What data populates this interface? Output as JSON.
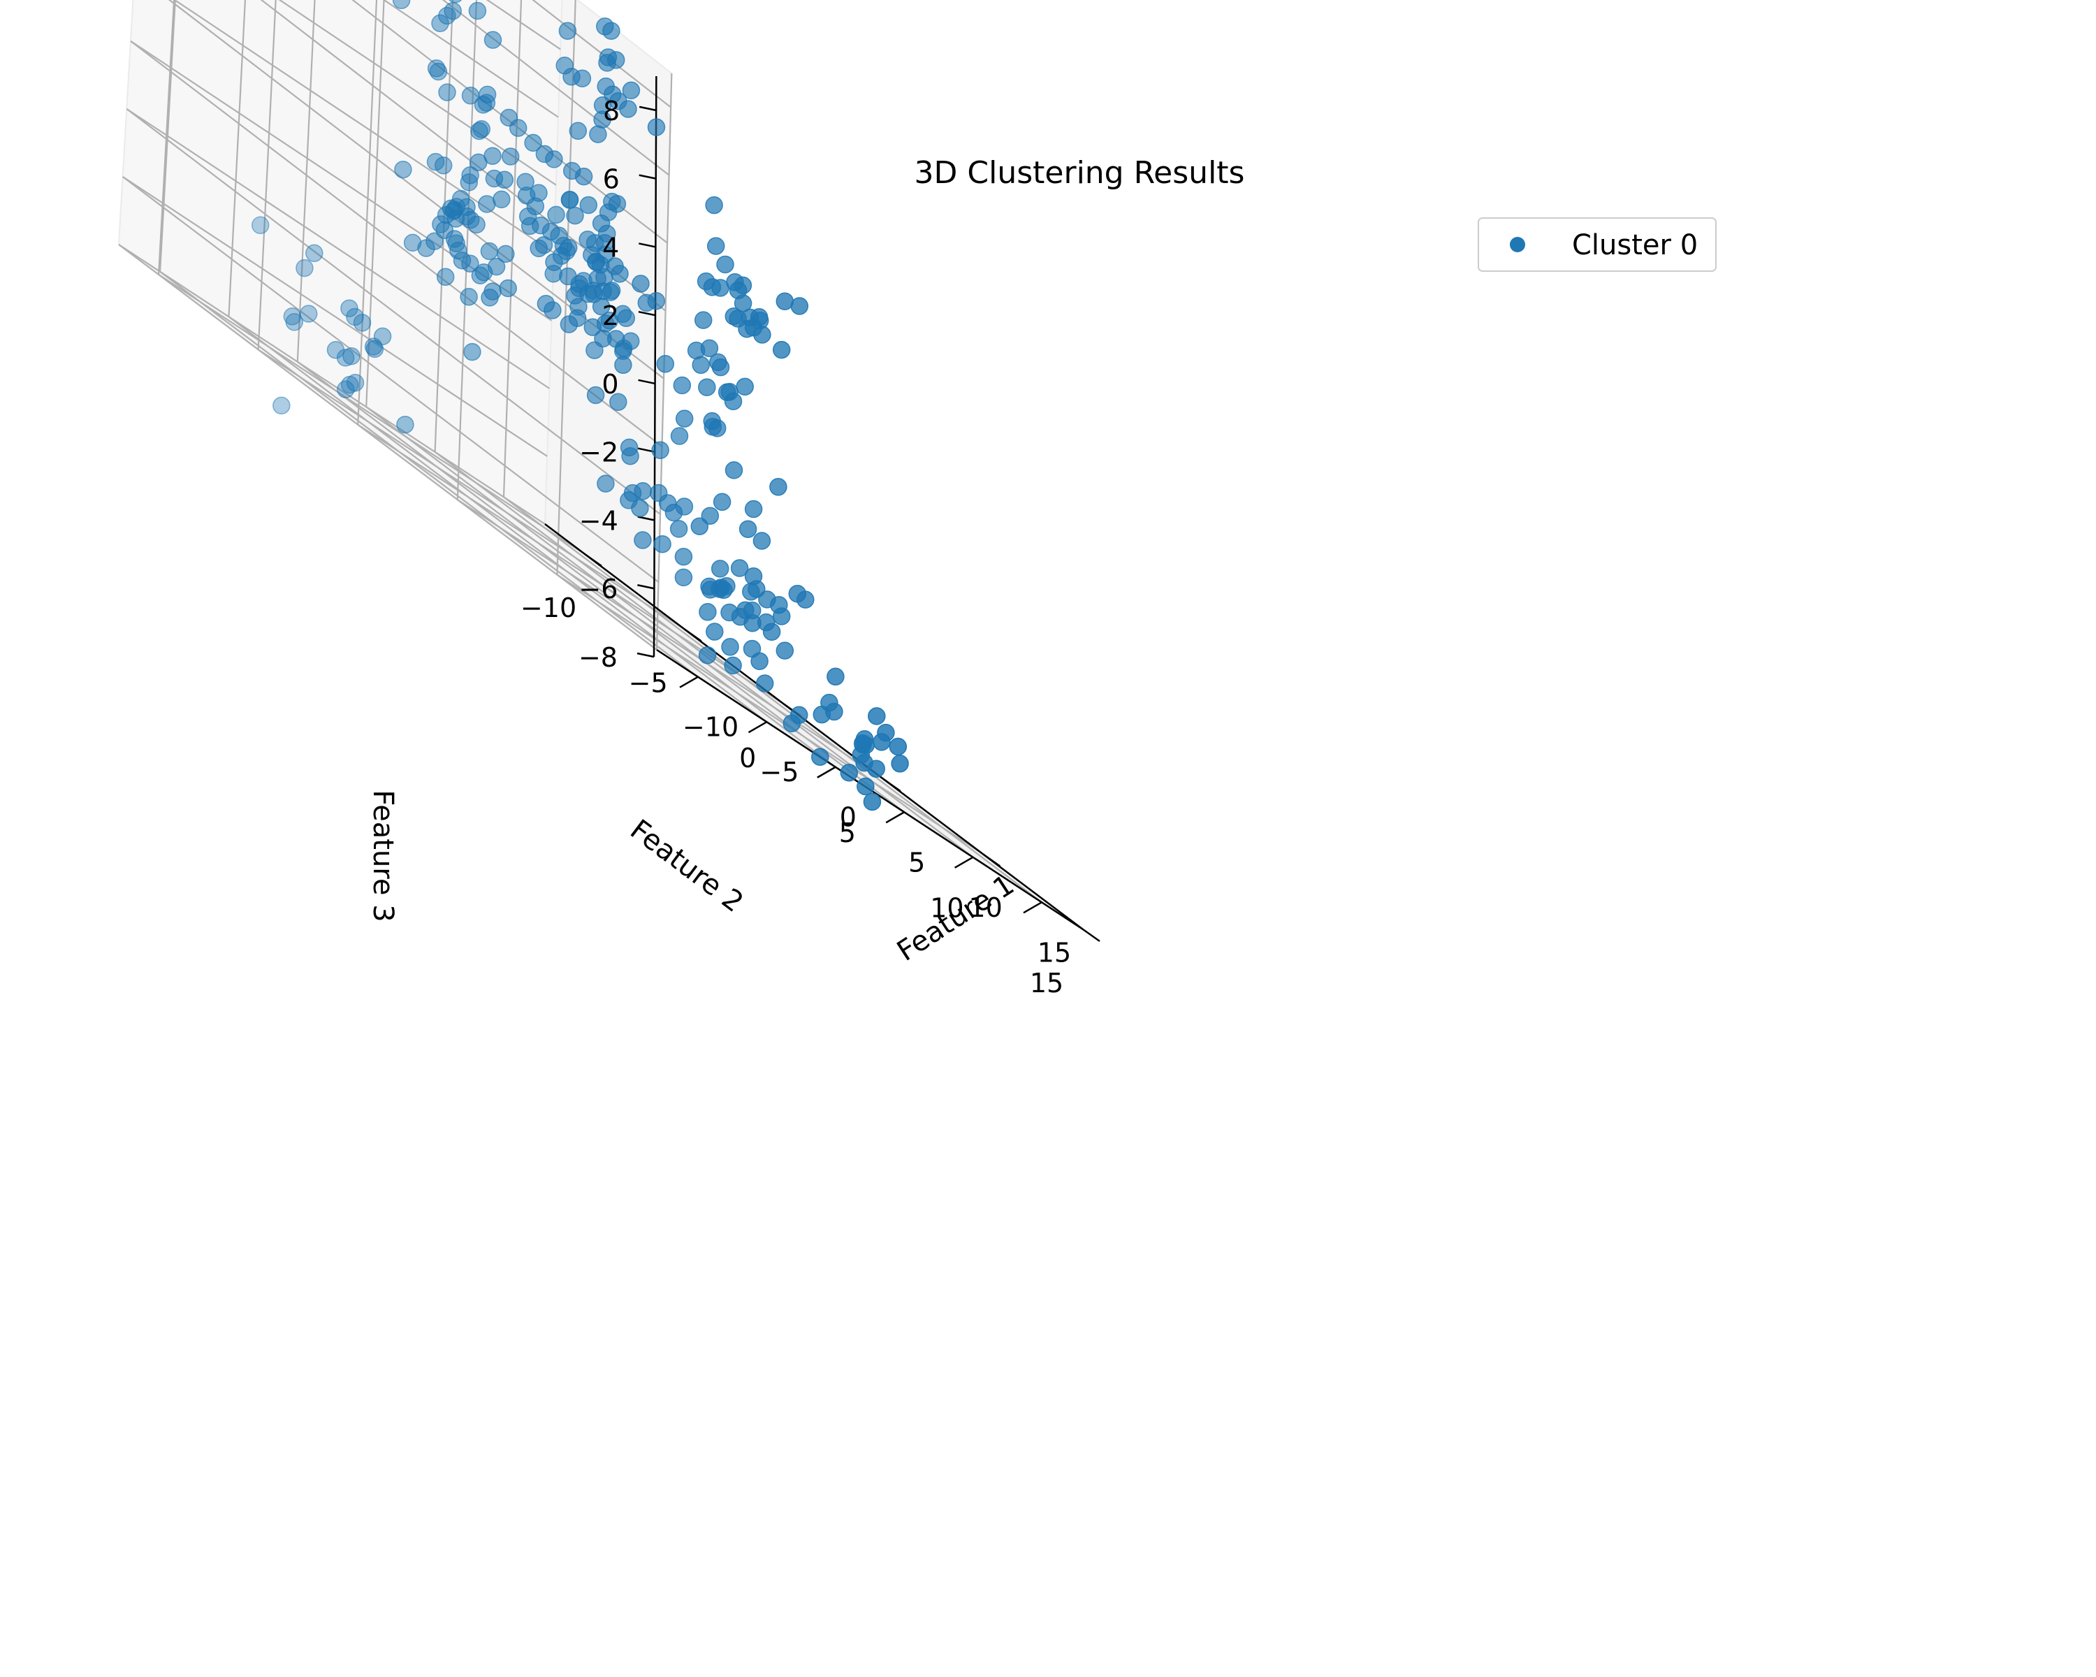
{
  "chart_data": {
    "type": "scatter3d",
    "title": "3D Clustering Results",
    "xlabel": "Feature 1",
    "ylabel": "Feature 2",
    "zlabel": "Feature 3",
    "xlim": [
      -13,
      18
    ],
    "ylim": [
      -12,
      15
    ],
    "zlim": [
      -8,
      9
    ],
    "x_ticks": [
      -10,
      -5,
      0,
      5,
      10,
      15
    ],
    "y_ticks": [
      -10,
      -5,
      0,
      5,
      10,
      15
    ],
    "z_ticks": [
      -8,
      -6,
      -4,
      -2,
      0,
      2,
      4,
      6,
      8
    ],
    "x_tick_labels": [
      "−10",
      "−5",
      "0",
      "5",
      "10",
      "15"
    ],
    "y_tick_labels": [
      "−10",
      "−5",
      "0",
      "5",
      "10",
      "15"
    ],
    "z_tick_labels": [
      "−8",
      "−6",
      "−4",
      "−2",
      "0",
      "2",
      "4",
      "6",
      "8"
    ],
    "grid": true,
    "legend_position": "top-right",
    "series": [
      {
        "name": "Cluster 0",
        "color": "#1f77b4",
        "centers": [
          [
            -9,
            -4,
            7
          ],
          [
            -6,
            0,
            4.5
          ],
          [
            0,
            -9,
            6
          ],
          [
            -5,
            6,
            7
          ],
          [
            -9,
            9,
            1
          ],
          [
            -3,
            -2,
            0
          ],
          [
            3,
            -6,
            -1
          ],
          [
            5,
            5,
            0
          ],
          [
            -10,
            -3,
            -6
          ],
          [
            -6,
            10,
            -4
          ],
          [
            4,
            8,
            -5
          ],
          [
            8,
            11,
            -7
          ],
          [
            10,
            3,
            3
          ],
          [
            -7,
            6,
            2
          ],
          [
            3,
            0,
            0
          ],
          [
            9,
            4,
            -6
          ],
          [
            -2,
            2,
            2
          ]
        ],
        "points_per_center": 20,
        "spread": 1.1
      }
    ]
  }
}
